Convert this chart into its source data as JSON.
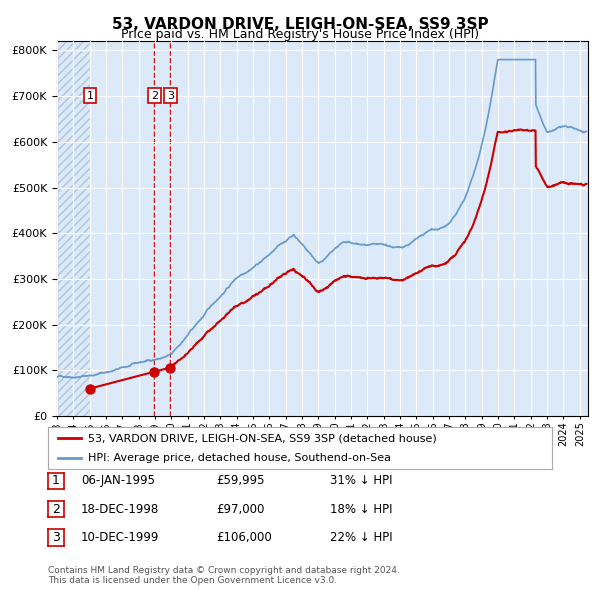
{
  "title": "53, VARDON DRIVE, LEIGH-ON-SEA, SS9 3SP",
  "subtitle": "Price paid vs. HM Land Registry's House Price Index (HPI)",
  "legend_red": "53, VARDON DRIVE, LEIGH-ON-SEA, SS9 3SP (detached house)",
  "legend_blue": "HPI: Average price, detached house, Southend-on-Sea",
  "footer": "Contains HM Land Registry data © Crown copyright and database right 2024.\nThis data is licensed under the Open Government Licence v3.0.",
  "sale_points": [
    {
      "label": "1",
      "date": "06-JAN-1995",
      "price": 59995,
      "pct": "31% ↓ HPI",
      "x_year": 1995.02
    },
    {
      "label": "2",
      "date": "18-DEC-1998",
      "price": 97000,
      "pct": "18% ↓ HPI",
      "x_year": 1998.96
    },
    {
      "label": "3",
      "date": "10-DEC-1999",
      "price": 106000,
      "pct": "22% ↓ HPI",
      "x_year": 1999.94
    }
  ],
  "ylim": [
    0,
    820000
  ],
  "xlim_left": 1993.0,
  "xlim_right": 2025.5,
  "plot_bg_color": "#dce9f8",
  "hatch_color": "#b0c4de",
  "red_color": "#cc0000",
  "blue_color": "#6699cc",
  "grid_color": "#ffffff",
  "vline_color": "#dd0000"
}
